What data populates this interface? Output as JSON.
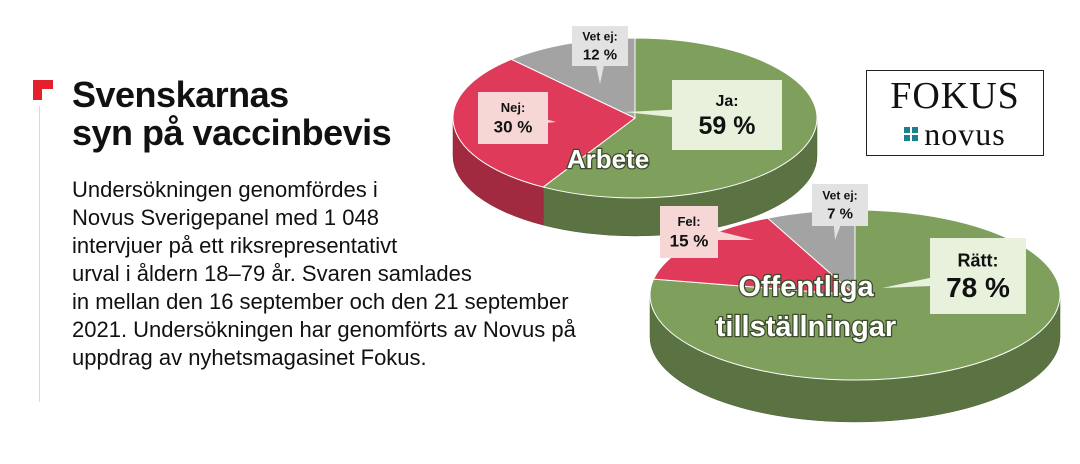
{
  "headline": {
    "line1": "Svenskarnas",
    "line2": "syn på vaccinbevis"
  },
  "description": [
    "Undersökningen genomfördes i",
    "Novus Sverigepanel med 1 048",
    "intervjuer på ett riksrepresentativt",
    "urval i åldern 18–79 år. Svaren samlades",
    "in mellan den 16 september och den 21 september",
    "2021. Undersökningen har genomförts av Novus på",
    "uppdrag av nyhetsmagasinet Fokus."
  ],
  "logo": {
    "line1": "FOKUS",
    "line2": "novus"
  },
  "colors": {
    "accent": "#e4202c",
    "green": "#7fa05c",
    "red": "#e03a5a",
    "gray": "#a3a3a3",
    "callout_green_bg": "#e7f1dc",
    "callout_red_bg": "#f7d7d5",
    "callout_gray_bg": "#e2e2e2"
  },
  "chart_data": [
    {
      "type": "pie",
      "title": "Arbete",
      "slices": [
        {
          "label": "Ja:",
          "value": 59,
          "value_text": "59 %",
          "color": "green"
        },
        {
          "label": "Nej:",
          "value": 30,
          "value_text": "30 %",
          "color": "red"
        },
        {
          "label": "Vet ej:",
          "value": 12,
          "value_text": "12 %",
          "color": "gray"
        }
      ]
    },
    {
      "type": "pie",
      "title_lines": [
        "Offentliga",
        "tillställningar"
      ],
      "slices": [
        {
          "label": "Rätt:",
          "value": 78,
          "value_text": "78 %",
          "color": "green"
        },
        {
          "label": "Fel:",
          "value": 15,
          "value_text": "15 %",
          "color": "red"
        },
        {
          "label": "Vet ej:",
          "value": 7,
          "value_text": "7 %",
          "color": "gray"
        }
      ]
    }
  ]
}
